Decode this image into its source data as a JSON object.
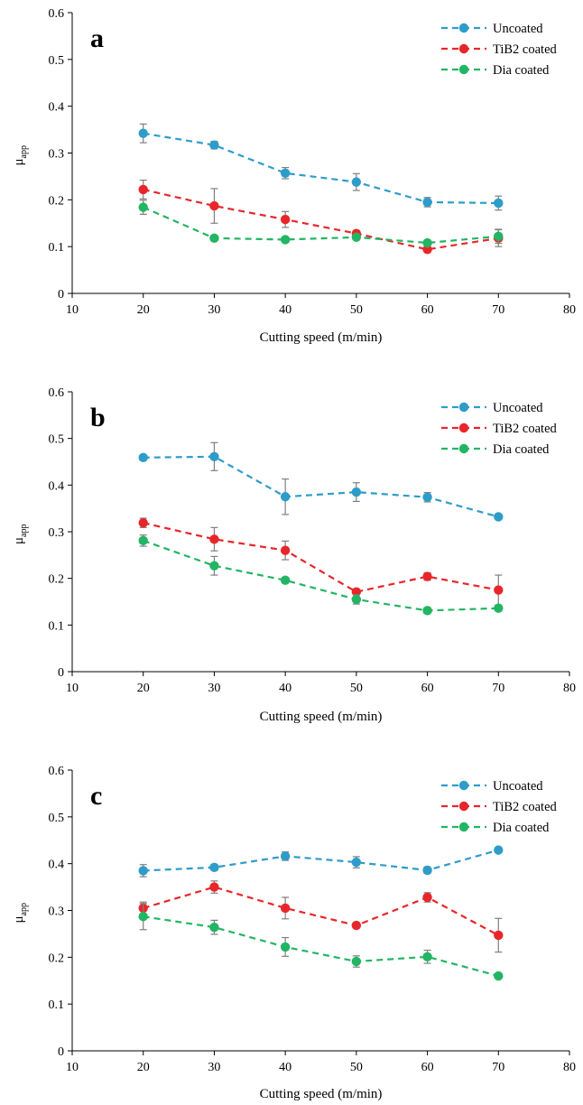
{
  "figure": {
    "colors": {
      "Uncoated": "#2e9cc9",
      "TiB2 coated": "#e8262a",
      "Dia coated": "#22b563"
    },
    "legend_placement": "top-right"
  },
  "chart_data": [
    {
      "type": "line",
      "panel_label": "a",
      "xlabel": "Cutting speed (m/min)",
      "ylabel": "μ",
      "ylabel_sub": "app",
      "xlim": [
        10,
        80
      ],
      "ylim": [
        0,
        0.6
      ],
      "xticks": [
        "10",
        "20",
        "30",
        "40",
        "50",
        "60",
        "70",
        "80"
      ],
      "yticks": [
        "0",
        "0.1",
        "0.2",
        "0.3",
        "0.4",
        "0.5",
        "0.6"
      ],
      "x": [
        20,
        30,
        40,
        50,
        60,
        70
      ],
      "series": [
        {
          "name": "Uncoated",
          "values": [
            0.342,
            0.317,
            0.257,
            0.238,
            0.195,
            0.193
          ],
          "errors": [
            0.02,
            0.008,
            0.012,
            0.018,
            0.01,
            0.015
          ]
        },
        {
          "name": "TiB2 coated",
          "values": [
            0.222,
            0.187,
            0.158,
            0.128,
            0.094,
            0.118
          ],
          "errors": [
            0.02,
            0.037,
            0.017,
            0.006,
            0.005,
            0.018
          ]
        },
        {
          "name": "Dia coated",
          "values": [
            0.184,
            0.118,
            0.115,
            0.12,
            0.108,
            0.122
          ],
          "errors": [
            0.015,
            0.004,
            0.004,
            0.004,
            0.004,
            0.015
          ]
        }
      ]
    },
    {
      "type": "line",
      "panel_label": "b",
      "xlabel": "Cutting speed (m/min)",
      "ylabel": "μ",
      "ylabel_sub": "app",
      "xlim": [
        10,
        80
      ],
      "ylim": [
        0,
        0.6
      ],
      "xticks": [
        "10",
        "20",
        "30",
        "40",
        "50",
        "60",
        "70",
        "80"
      ],
      "yticks": [
        "0",
        "0.1",
        "0.2",
        "0.3",
        "0.4",
        "0.5",
        "0.6"
      ],
      "x": [
        20,
        30,
        40,
        50,
        60,
        70
      ],
      "series": [
        {
          "name": "Uncoated",
          "values": [
            0.459,
            0.461,
            0.375,
            0.385,
            0.374,
            0.332
          ],
          "errors": [
            0.005,
            0.03,
            0.038,
            0.02,
            0.01,
            0.004
          ]
        },
        {
          "name": "TiB2 coated",
          "values": [
            0.319,
            0.284,
            0.26,
            0.171,
            0.204,
            0.175
          ],
          "errors": [
            0.01,
            0.025,
            0.02,
            0.006,
            0.008,
            0.032
          ]
        },
        {
          "name": "Dia coated",
          "values": [
            0.281,
            0.227,
            0.196,
            0.155,
            0.131,
            0.136
          ],
          "errors": [
            0.012,
            0.02,
            0.006,
            0.01,
            0.006,
            0.005
          ]
        }
      ]
    },
    {
      "type": "line",
      "panel_label": "c",
      "xlabel": "Cutting speed (m/min)",
      "ylabel": "μ",
      "ylabel_sub": "app",
      "xlim": [
        10,
        80
      ],
      "ylim": [
        0,
        0.6
      ],
      "xticks": [
        "10",
        "20",
        "30",
        "40",
        "50",
        "60",
        "70",
        "80"
      ],
      "yticks": [
        "0",
        "0.1",
        "0.2",
        "0.3",
        "0.4",
        "0.5",
        "0.6"
      ],
      "x": [
        20,
        30,
        40,
        50,
        60,
        70
      ],
      "series": [
        {
          "name": "Uncoated",
          "values": [
            0.385,
            0.392,
            0.416,
            0.403,
            0.386,
            0.429
          ],
          "errors": [
            0.013,
            0.006,
            0.009,
            0.012,
            0.007,
            0.004
          ]
        },
        {
          "name": "TiB2 coated",
          "values": [
            0.305,
            0.35,
            0.305,
            0.268,
            0.328,
            0.247
          ],
          "errors": [
            0.013,
            0.013,
            0.023,
            0.005,
            0.01,
            0.036
          ]
        },
        {
          "name": "Dia coated",
          "values": [
            0.287,
            0.264,
            0.222,
            0.191,
            0.201,
            0.16
          ],
          "errors": [
            0.028,
            0.015,
            0.02,
            0.012,
            0.014,
            0.004
          ]
        }
      ]
    }
  ]
}
